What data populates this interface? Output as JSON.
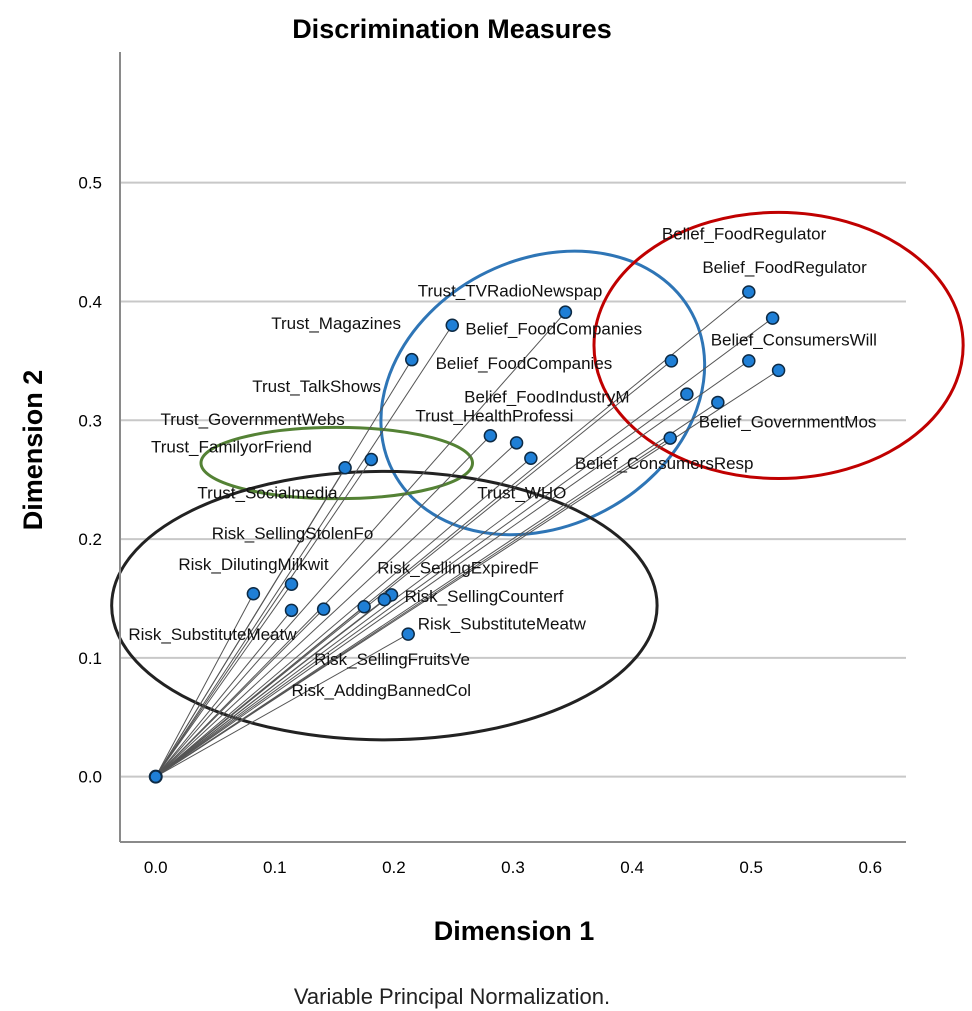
{
  "chart_data": {
    "type": "scatter",
    "title": "Discrimination Measures",
    "xlabel": "Dimension 1",
    "ylabel": "Dimension 2",
    "footnote": "Variable Principal Normalization.",
    "xlim": [
      -0.03,
      0.63
    ],
    "ylim": [
      -0.055,
      0.61
    ],
    "xticks": [
      "0.0",
      "0.1",
      "0.2",
      "0.3",
      "0.4",
      "0.5",
      "0.6"
    ],
    "yticks": [
      "0.0",
      "0.1",
      "0.2",
      "0.3",
      "0.4",
      "0.5"
    ],
    "grid": "horizontal",
    "origin": [
      0.0,
      0.0
    ],
    "point_color": "#1f7fd6",
    "points": [
      {
        "x": 0.498,
        "y": 0.408
      },
      {
        "x": 0.518,
        "y": 0.386
      },
      {
        "x": 0.433,
        "y": 0.35
      },
      {
        "x": 0.498,
        "y": 0.35
      },
      {
        "x": 0.523,
        "y": 0.342
      },
      {
        "x": 0.446,
        "y": 0.322
      },
      {
        "x": 0.472,
        "y": 0.315
      },
      {
        "x": 0.432,
        "y": 0.285
      },
      {
        "x": 0.344,
        "y": 0.391
      },
      {
        "x": 0.249,
        "y": 0.38
      },
      {
        "x": 0.215,
        "y": 0.351
      },
      {
        "x": 0.281,
        "y": 0.287
      },
      {
        "x": 0.303,
        "y": 0.281
      },
      {
        "x": 0.315,
        "y": 0.268
      },
      {
        "x": 0.181,
        "y": 0.267
      },
      {
        "x": 0.159,
        "y": 0.26
      },
      {
        "x": 0.114,
        "y": 0.162
      },
      {
        "x": 0.082,
        "y": 0.154
      },
      {
        "x": 0.198,
        "y": 0.153
      },
      {
        "x": 0.192,
        "y": 0.149
      },
      {
        "x": 0.175,
        "y": 0.143
      },
      {
        "x": 0.141,
        "y": 0.141
      },
      {
        "x": 0.114,
        "y": 0.14
      },
      {
        "x": 0.212,
        "y": 0.12
      }
    ],
    "labels": [
      {
        "text": "Belief_FoodRegulator",
        "x": 0.425,
        "y": 0.452
      },
      {
        "text": "Belief_FoodRegulator",
        "x": 0.459,
        "y": 0.424
      },
      {
        "text": "Belief_ConsumersWill",
        "x": 0.466,
        "y": 0.363
      },
      {
        "text": "Belief_FoodCompanies",
        "x": 0.26,
        "y": 0.372
      },
      {
        "text": "Belief_FoodCompanies",
        "x": 0.235,
        "y": 0.343
      },
      {
        "text": "Belief_FoodIndustryM",
        "x": 0.259,
        "y": 0.315
      },
      {
        "text": "Belief_GovernmentMos",
        "x": 0.456,
        "y": 0.294
      },
      {
        "text": "Belief_ConsumersResp",
        "x": 0.352,
        "y": 0.259
      },
      {
        "text": "Trust_TVRadioNewspap",
        "x": 0.22,
        "y": 0.404
      },
      {
        "text": "Trust_Magazines",
        "x": 0.097,
        "y": 0.377
      },
      {
        "text": "Trust_TalkShows",
        "x": 0.081,
        "y": 0.324
      },
      {
        "text": "Trust_GovernmentWebs",
        "x": 0.004,
        "y": 0.296
      },
      {
        "text": "Trust_HealthProfessi",
        "x": 0.218,
        "y": 0.299
      },
      {
        "text": "Trust_FamilyorFriend",
        "x": -0.004,
        "y": 0.273
      },
      {
        "text": "Trust_Socialmedia",
        "x": 0.035,
        "y": 0.234
      },
      {
        "text": "Trust_WHO",
        "x": 0.27,
        "y": 0.234
      },
      {
        "text": "Risk_SellingStolenFo",
        "x": 0.047,
        "y": 0.2
      },
      {
        "text": "Risk_DilutingMilkwit",
        "x": 0.019,
        "y": 0.174
      },
      {
        "text": "Risk_SellingExpiredF",
        "x": 0.186,
        "y": 0.171
      },
      {
        "text": "Risk_SellingCounterf",
        "x": 0.209,
        "y": 0.147
      },
      {
        "text": "Risk_SubstituteMeatw",
        "x": -0.023,
        "y": 0.115
      },
      {
        "text": "Risk_SubstituteMeatw",
        "x": 0.22,
        "y": 0.124
      },
      {
        "text": "Risk_SellingFruitsVe",
        "x": 0.133,
        "y": 0.094
      },
      {
        "text": "Risk_AddingBannedCol",
        "x": 0.114,
        "y": 0.068
      }
    ],
    "groups": [
      {
        "color": "#2e75b6",
        "cx": 0.325,
        "cy": 0.323,
        "rx": 0.142,
        "ry": 0.112,
        "angle": 28
      },
      {
        "color": "#c00000",
        "cx": 0.523,
        "cy": 0.363,
        "rx": 0.155,
        "ry": 0.112,
        "angle": 0
      },
      {
        "color": "#548235",
        "cx": 0.152,
        "cy": 0.264,
        "rx": 0.114,
        "ry": 0.03,
        "angle": 0
      },
      {
        "color": "#222222",
        "cx": 0.192,
        "cy": 0.144,
        "rx": 0.229,
        "ry": 0.113,
        "angle": 0
      }
    ]
  }
}
